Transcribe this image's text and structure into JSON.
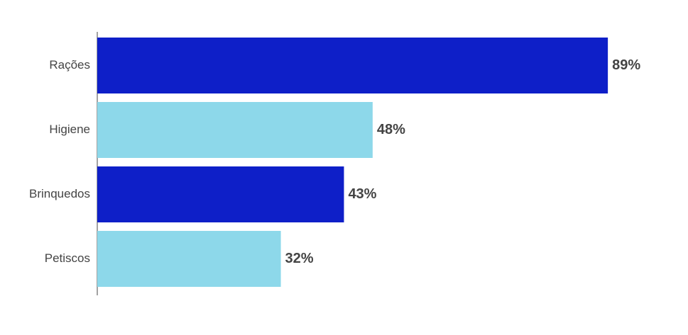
{
  "chart_data": {
    "type": "hbar",
    "categories": [
      "Rações",
      "Higiene",
      "Brinquedos",
      "Petiscos"
    ],
    "values": [
      89,
      48,
      43,
      32
    ],
    "value_labels": [
      "89%",
      "48%",
      "43%",
      "32%"
    ],
    "colors": [
      "#0e1fc8",
      "#8dd8ea",
      "#0e1fc8",
      "#8dd8ea"
    ],
    "xlim": [
      0,
      100
    ]
  }
}
